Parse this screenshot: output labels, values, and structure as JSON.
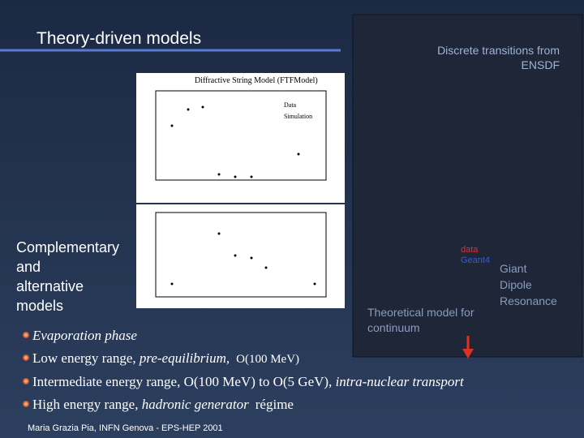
{
  "header": {
    "title": "Theory-driven models"
  },
  "right_panel": {
    "caption": [
      "Discrete transitions from",
      "ENSDF"
    ],
    "legend": [
      "data",
      "Geant4"
    ],
    "resonance": [
      "Giant",
      "Dipole",
      "Resonance"
    ],
    "continuum": [
      "Theoretical model for",
      "continuum"
    ]
  },
  "plot": {
    "title": "Diffractive String Model (FTFModel)",
    "legend": [
      "Data",
      "Simulation"
    ]
  },
  "side_note": [
    "Complementary",
    "and",
    "alternative",
    "models"
  ],
  "bullets": [
    [
      "Evaporation phase"
    ],
    [
      "Low energy range, ",
      "pre-equilibrium,",
      "O(100 MeV)"
    ],
    [
      "Intermediate energy range, O(100 MeV) to O(5 GeV), ",
      "intra-nuclear transport"
    ],
    [
      "High energy range, ",
      "hadronic generator",
      "régime"
    ]
  ],
  "footer": "Maria Grazia Pia, INFN Genova - EPS-HEP 2001"
}
